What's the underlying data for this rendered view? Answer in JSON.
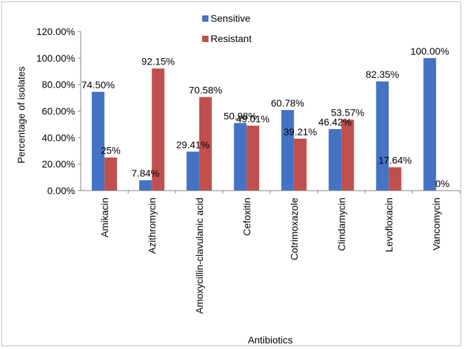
{
  "chart_data": {
    "type": "bar",
    "title": "",
    "xlabel": "Antibiotics",
    "ylabel": "Percentage of isolates",
    "ylim": [
      0,
      120
    ],
    "yticks": [
      "0.00%",
      "20.00%",
      "40.00%",
      "60.00%",
      "80.00%",
      "100.00%",
      "120.00%"
    ],
    "grid": false,
    "legend_position": "top",
    "categories": [
      "Amikacin",
      "Azithromycin",
      "Amoxycillin-clavulanic acid",
      "Cefoxitin",
      "Cotrimoxazole",
      "Clindamycin",
      "Levofloxacin",
      "Vancomycin"
    ],
    "series": [
      {
        "name": "Sensitive",
        "color": "#4472C4",
        "values": [
          74.5,
          7.84,
          29.41,
          50.98,
          60.78,
          46.42,
          82.35,
          100.0
        ],
        "labels": [
          "74.50%",
          "7.84%",
          "29.41%",
          "50.98%",
          "60.78%",
          "46.42%",
          "82.35%",
          "100.00%"
        ]
      },
      {
        "name": "Resistant",
        "color": "#C0504D",
        "values": [
          25,
          92.15,
          70.58,
          49.01,
          39.21,
          53.57,
          17.64,
          0
        ],
        "labels": [
          "25%",
          "92.15%",
          "70.58%",
          "49.01%",
          "39.21%",
          "53.57%",
          "17.64%",
          "0%"
        ]
      }
    ]
  }
}
